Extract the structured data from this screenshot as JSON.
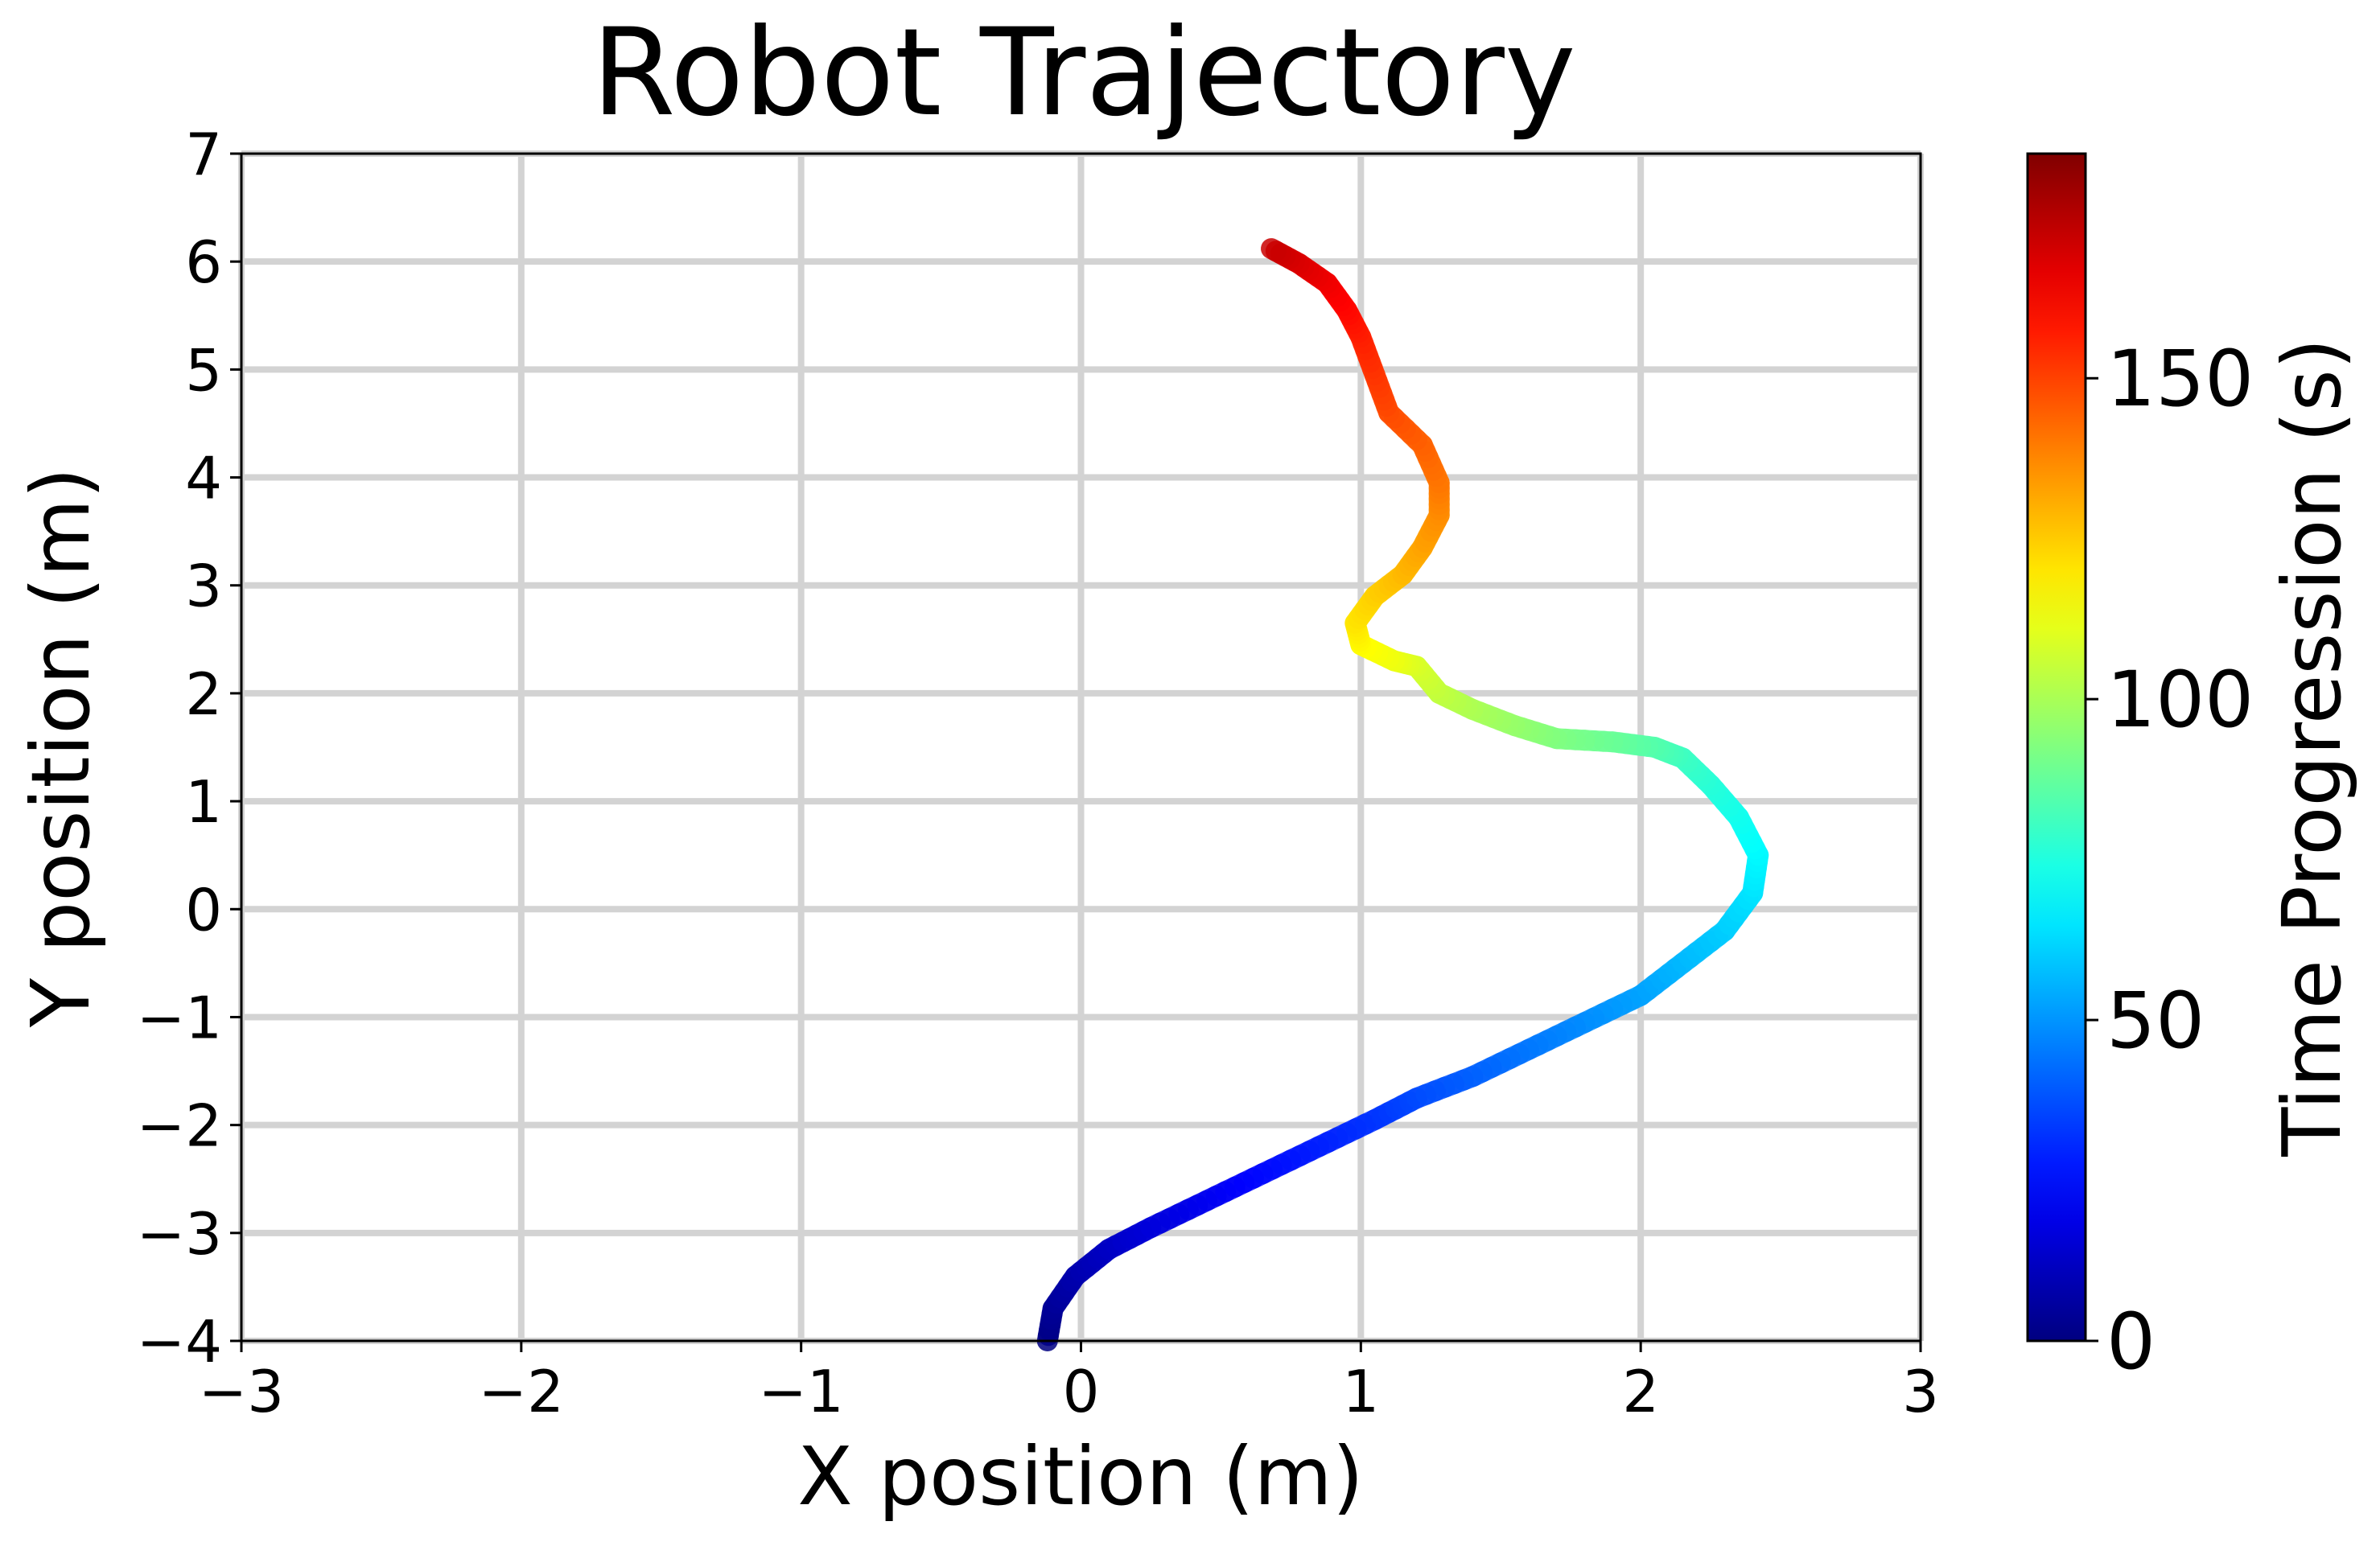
{
  "chart_data": {
    "type": "line",
    "title": "Robot Trajectory",
    "xlabel": "X position (m)",
    "ylabel": "Y position (m)",
    "xlim": [
      -3,
      3
    ],
    "ylim": [
      -4,
      7
    ],
    "xticks": [
      -3,
      -2,
      -1,
      0,
      1,
      2,
      3
    ],
    "yticks": [
      -4,
      -3,
      -2,
      -1,
      0,
      1,
      2,
      3,
      4,
      5,
      6,
      7
    ],
    "xtick_labels": [
      "−3",
      "−2",
      "−1",
      "0",
      "1",
      "2",
      "3"
    ],
    "ytick_labels": [
      "−4",
      "−3",
      "−2",
      "−1",
      "0",
      "1",
      "2",
      "3",
      "4",
      "5",
      "6",
      "7"
    ],
    "grid": true,
    "colormap": "jet",
    "colorbar": {
      "label": "Time Progression (s)",
      "range": [
        0,
        185
      ],
      "ticks": [
        0,
        50,
        100,
        150
      ],
      "tick_labels": [
        "0",
        "50",
        "100",
        "150"
      ]
    },
    "series": [
      {
        "color_by": "time",
        "points": [
          {
            "x": -0.12,
            "y": -4.0,
            "t": 0
          },
          {
            "x": -0.1,
            "y": -3.7,
            "t": 4
          },
          {
            "x": -0.02,
            "y": -3.4,
            "t": 8
          },
          {
            "x": 0.1,
            "y": -3.15,
            "t": 12
          },
          {
            "x": 0.25,
            "y": -2.95,
            "t": 16
          },
          {
            "x": 0.45,
            "y": -2.7,
            "t": 20
          },
          {
            "x": 0.65,
            "y": -2.45,
            "t": 24
          },
          {
            "x": 0.85,
            "y": -2.2,
            "t": 28
          },
          {
            "x": 1.05,
            "y": -1.95,
            "t": 32
          },
          {
            "x": 1.2,
            "y": -1.75,
            "t": 36
          },
          {
            "x": 1.4,
            "y": -1.55,
            "t": 40
          },
          {
            "x": 1.6,
            "y": -1.3,
            "t": 44
          },
          {
            "x": 1.8,
            "y": -1.05,
            "t": 48
          },
          {
            "x": 2.0,
            "y": -0.8,
            "t": 52
          },
          {
            "x": 2.15,
            "y": -0.5,
            "t": 56
          },
          {
            "x": 2.3,
            "y": -0.2,
            "t": 60
          },
          {
            "x": 2.4,
            "y": 0.15,
            "t": 64
          },
          {
            "x": 2.42,
            "y": 0.5,
            "t": 68
          },
          {
            "x": 2.35,
            "y": 0.85,
            "t": 72
          },
          {
            "x": 2.25,
            "y": 1.15,
            "t": 76
          },
          {
            "x": 2.15,
            "y": 1.4,
            "t": 80
          },
          {
            "x": 2.05,
            "y": 1.5,
            "t": 84
          },
          {
            "x": 1.9,
            "y": 1.55,
            "t": 88
          },
          {
            "x": 1.7,
            "y": 1.58,
            "t": 92
          },
          {
            "x": 1.55,
            "y": 1.7,
            "t": 96
          },
          {
            "x": 1.4,
            "y": 1.85,
            "t": 100
          },
          {
            "x": 1.28,
            "y": 2.0,
            "t": 104
          },
          {
            "x": 1.2,
            "y": 2.25,
            "t": 108
          },
          {
            "x": 1.12,
            "y": 2.3,
            "t": 112
          },
          {
            "x": 1.0,
            "y": 2.45,
            "t": 116
          },
          {
            "x": 0.98,
            "y": 2.65,
            "t": 120
          },
          {
            "x": 1.05,
            "y": 2.9,
            "t": 124
          },
          {
            "x": 1.15,
            "y": 3.1,
            "t": 128
          },
          {
            "x": 1.22,
            "y": 3.35,
            "t": 132
          },
          {
            "x": 1.28,
            "y": 3.65,
            "t": 136
          },
          {
            "x": 1.28,
            "y": 3.95,
            "t": 140
          },
          {
            "x": 1.22,
            "y": 4.3,
            "t": 144
          },
          {
            "x": 1.1,
            "y": 4.6,
            "t": 148
          },
          {
            "x": 1.05,
            "y": 4.95,
            "t": 152
          },
          {
            "x": 1.0,
            "y": 5.3,
            "t": 156
          },
          {
            "x": 0.95,
            "y": 5.55,
            "t": 160
          },
          {
            "x": 0.88,
            "y": 5.8,
            "t": 164
          },
          {
            "x": 0.78,
            "y": 5.98,
            "t": 168
          },
          {
            "x": 0.68,
            "y": 6.12,
            "t": 172
          }
        ]
      }
    ]
  }
}
